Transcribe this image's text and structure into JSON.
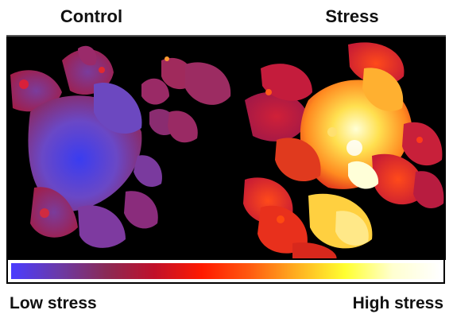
{
  "panels": {
    "left_title": "Control",
    "right_title": "Stress"
  },
  "colorbar": {
    "low_label": "Low stress",
    "high_label": "High stress",
    "stops": [
      "#4a3cff",
      "#6b3aa8",
      "#8a2a55",
      "#c0102a",
      "#ff1a00",
      "#ff5a10",
      "#ffb020",
      "#ffff30",
      "#ffffd0",
      "#ffffff"
    ]
  },
  "colors": {
    "background": "#000000",
    "control_tone": "#6a4cc8",
    "stress_hot": "#ffd84a",
    "stress_mid": "#ff3a1a",
    "stress_low": "#c0203a"
  }
}
